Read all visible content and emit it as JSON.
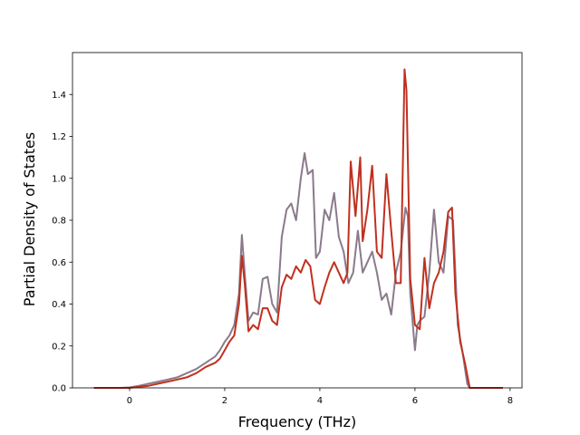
{
  "chart_data": {
    "type": "line",
    "title": "",
    "xlabel": "Frequency (THz)",
    "ylabel": "Partial Density of States",
    "xlim": [
      -1.2,
      8.25
    ],
    "ylim": [
      0,
      1.6
    ],
    "xticks": [
      0,
      2,
      4,
      6,
      8
    ],
    "yticks": [
      0.0,
      0.2,
      0.4,
      0.6,
      0.8,
      1.0,
      1.2,
      1.4
    ],
    "xtick_labels": [
      "0",
      "2",
      "4",
      "6",
      "8"
    ],
    "ytick_labels": [
      "0.0",
      "0.2",
      "0.4",
      "0.6",
      "0.8",
      "1.0",
      "1.2",
      "1.4"
    ],
    "grid": false,
    "series": [
      {
        "color": "#8a7a8a",
        "x": [
          -0.75,
          -0.2,
          0,
          0.2,
          0.4,
          0.6,
          0.8,
          1.0,
          1.2,
          1.4,
          1.6,
          1.8,
          1.9,
          2.0,
          2.1,
          2.2,
          2.3,
          2.36,
          2.42,
          2.5,
          2.6,
          2.7,
          2.8,
          2.9,
          3.0,
          3.1,
          3.2,
          3.3,
          3.4,
          3.5,
          3.6,
          3.68,
          3.75,
          3.85,
          3.92,
          4.0,
          4.1,
          4.2,
          4.3,
          4.4,
          4.5,
          4.6,
          4.7,
          4.8,
          4.9,
          5.0,
          5.1,
          5.2,
          5.3,
          5.4,
          5.5,
          5.6,
          5.7,
          5.8,
          5.85,
          5.9,
          6.0,
          6.05,
          6.1,
          6.2,
          6.3,
          6.4,
          6.5,
          6.6,
          6.7,
          6.8,
          6.9,
          7.0,
          7.1,
          7.15,
          7.3,
          7.85
        ],
        "y": [
          0.0,
          0.0,
          0.002,
          0.01,
          0.02,
          0.03,
          0.04,
          0.05,
          0.07,
          0.09,
          0.12,
          0.15,
          0.18,
          0.22,
          0.25,
          0.3,
          0.45,
          0.73,
          0.55,
          0.32,
          0.36,
          0.35,
          0.52,
          0.53,
          0.4,
          0.36,
          0.72,
          0.85,
          0.88,
          0.8,
          1.0,
          1.12,
          1.02,
          1.04,
          0.62,
          0.65,
          0.85,
          0.8,
          0.93,
          0.72,
          0.65,
          0.5,
          0.55,
          0.75,
          0.55,
          0.6,
          0.65,
          0.55,
          0.42,
          0.45,
          0.35,
          0.55,
          0.65,
          0.86,
          0.82,
          0.45,
          0.18,
          0.3,
          0.32,
          0.34,
          0.55,
          0.85,
          0.6,
          0.55,
          0.82,
          0.8,
          0.3,
          0.17,
          0.02,
          0.0,
          0.0,
          0.0
        ]
      },
      {
        "color": "#c0301f",
        "x": [
          -0.75,
          -0.2,
          0,
          0.2,
          0.4,
          0.6,
          0.8,
          1.0,
          1.2,
          1.4,
          1.6,
          1.8,
          1.9,
          2.0,
          2.1,
          2.2,
          2.3,
          2.36,
          2.42,
          2.5,
          2.6,
          2.7,
          2.8,
          2.9,
          3.0,
          3.1,
          3.2,
          3.3,
          3.4,
          3.5,
          3.6,
          3.7,
          3.8,
          3.9,
          4.0,
          4.1,
          4.2,
          4.3,
          4.4,
          4.5,
          4.58,
          4.65,
          4.75,
          4.85,
          4.9,
          5.0,
          5.1,
          5.2,
          5.3,
          5.4,
          5.5,
          5.6,
          5.7,
          5.78,
          5.82,
          5.9,
          6.0,
          6.1,
          6.2,
          6.3,
          6.4,
          6.5,
          6.6,
          6.7,
          6.78,
          6.85,
          6.95,
          7.05,
          7.15,
          7.3,
          7.85
        ],
        "y": [
          0.0,
          0.0,
          0.0,
          0.005,
          0.01,
          0.02,
          0.03,
          0.04,
          0.05,
          0.07,
          0.1,
          0.12,
          0.14,
          0.18,
          0.22,
          0.25,
          0.4,
          0.63,
          0.5,
          0.27,
          0.3,
          0.28,
          0.38,
          0.38,
          0.32,
          0.3,
          0.48,
          0.54,
          0.52,
          0.58,
          0.55,
          0.61,
          0.58,
          0.42,
          0.4,
          0.48,
          0.55,
          0.6,
          0.55,
          0.5,
          0.55,
          1.08,
          0.82,
          1.1,
          0.7,
          0.85,
          1.06,
          0.65,
          0.62,
          1.02,
          0.75,
          0.5,
          0.5,
          1.52,
          1.42,
          0.52,
          0.3,
          0.28,
          0.62,
          0.38,
          0.5,
          0.55,
          0.65,
          0.84,
          0.86,
          0.45,
          0.22,
          0.12,
          0.0,
          0.0,
          0.0
        ]
      }
    ]
  }
}
